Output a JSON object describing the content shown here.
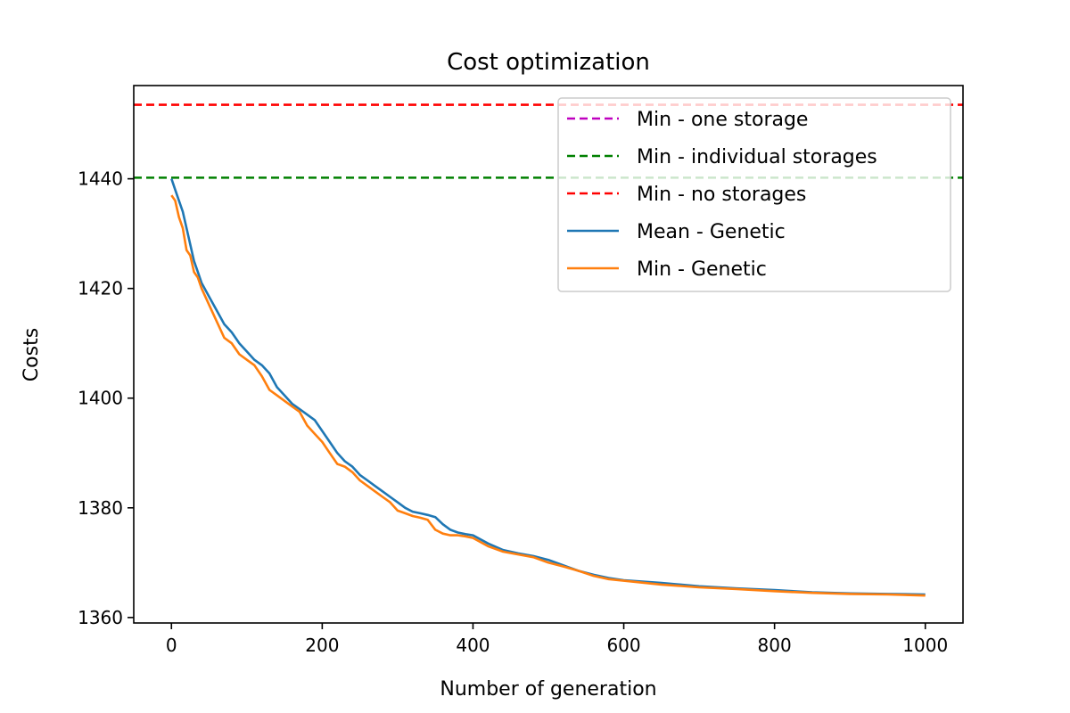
{
  "chart_data": {
    "type": "line",
    "title": "Cost optimization",
    "xlabel": "Number of generation",
    "ylabel": "Costs",
    "xlim": [
      -50,
      1050
    ],
    "ylim": [
      1359,
      1457
    ],
    "xticks": [
      0,
      200,
      400,
      600,
      800,
      1000
    ],
    "yticks": [
      1360,
      1380,
      1400,
      1420,
      1440
    ],
    "grid": false,
    "legend_position": "upper-right",
    "reference_lines": [
      {
        "name": "Min - one storage",
        "y": null,
        "color": "#bf00bf",
        "style": "dashed"
      },
      {
        "name": "Min - individual storages",
        "y": 1440.2,
        "color": "#008000",
        "style": "dashed"
      },
      {
        "name": "Min - no storages",
        "y": 1453.5,
        "color": "#ff0000",
        "style": "dashed"
      }
    ],
    "series": [
      {
        "name": "Mean - Genetic",
        "color": "#1f77b4",
        "style": "solid",
        "x": [
          0,
          5,
          10,
          15,
          20,
          25,
          30,
          35,
          40,
          50,
          60,
          70,
          80,
          90,
          100,
          110,
          120,
          130,
          140,
          150,
          160,
          170,
          180,
          190,
          200,
          210,
          220,
          230,
          240,
          250,
          260,
          270,
          280,
          290,
          300,
          310,
          320,
          330,
          340,
          350,
          360,
          370,
          380,
          390,
          400,
          420,
          440,
          460,
          480,
          500,
          520,
          540,
          560,
          580,
          600,
          650,
          700,
          750,
          800,
          850,
          900,
          950,
          1000
        ],
        "y": [
          1440,
          1438,
          1436,
          1434,
          1431,
          1428,
          1425,
          1423,
          1421,
          1418.5,
          1416,
          1413.5,
          1412,
          1410,
          1408.5,
          1407,
          1406,
          1404.5,
          1402,
          1400.5,
          1399,
          1398,
          1397,
          1396,
          1394,
          1392,
          1390,
          1388.5,
          1387.5,
          1386,
          1385,
          1384,
          1383,
          1382,
          1381,
          1380,
          1379.3,
          1379,
          1378.7,
          1378.3,
          1377,
          1376,
          1375.5,
          1375.2,
          1375,
          1373.5,
          1372.3,
          1371.7,
          1371.2,
          1370.5,
          1369.5,
          1368.5,
          1367.8,
          1367.2,
          1366.8,
          1366.3,
          1365.7,
          1365.3,
          1365,
          1364.6,
          1364.4,
          1364.3,
          1364.2
        ]
      },
      {
        "name": "Min - Genetic",
        "color": "#ff7f0e",
        "style": "solid",
        "x": [
          0,
          5,
          10,
          15,
          20,
          25,
          30,
          35,
          40,
          50,
          60,
          70,
          80,
          90,
          100,
          110,
          120,
          130,
          140,
          150,
          160,
          170,
          180,
          190,
          200,
          210,
          220,
          230,
          240,
          250,
          260,
          270,
          280,
          290,
          300,
          310,
          320,
          330,
          340,
          350,
          360,
          370,
          380,
          390,
          400,
          420,
          440,
          460,
          480,
          500,
          520,
          540,
          560,
          580,
          600,
          650,
          700,
          750,
          800,
          850,
          900,
          950,
          1000
        ],
        "y": [
          1437,
          1436,
          1433,
          1431,
          1427,
          1426,
          1423,
          1422,
          1420,
          1417,
          1414,
          1411,
          1410,
          1408,
          1407,
          1406,
          1404,
          1401.5,
          1400.5,
          1399.5,
          1398.5,
          1397.5,
          1395,
          1393.5,
          1392,
          1390,
          1388,
          1387.5,
          1386.5,
          1385,
          1384,
          1383,
          1382,
          1381,
          1379.5,
          1379,
          1378.5,
          1378.2,
          1377.8,
          1376,
          1375.3,
          1375,
          1375,
          1374.8,
          1374.5,
          1373,
          1372,
          1371.5,
          1371,
          1370,
          1369.3,
          1368.5,
          1367.6,
          1367,
          1366.7,
          1366,
          1365.5,
          1365.2,
          1364.8,
          1364.5,
          1364.3,
          1364.2,
          1364
        ]
      }
    ]
  }
}
